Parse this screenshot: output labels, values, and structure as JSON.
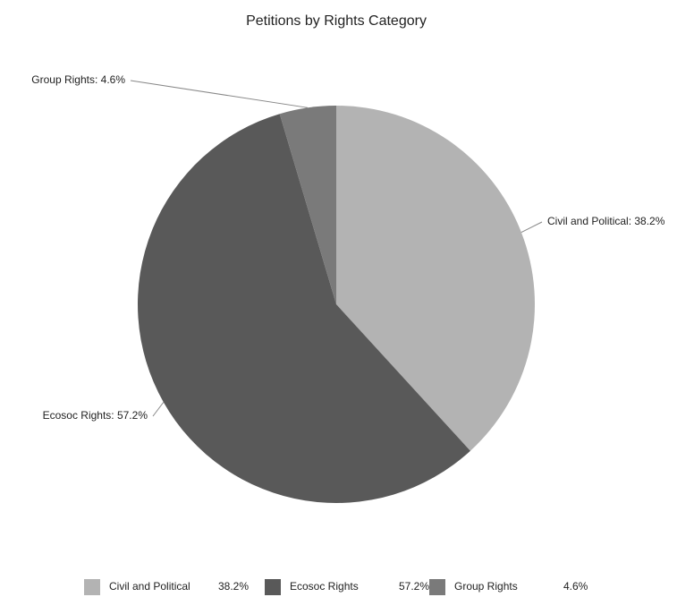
{
  "chart_data": {
    "type": "pie",
    "title": "Petitions by Rights Category",
    "categories": [
      "Civil and Political",
      "Ecosoc Rights",
      "Group Rights"
    ],
    "values": [
      38.2,
      57.2,
      4.6
    ],
    "value_labels": [
      "38.2%",
      "57.2%",
      "4.6%"
    ],
    "slice_labels": [
      "Civil and Political: 38.2%",
      "Ecosoc Rights: 57.2%",
      "Group Rights: 4.6%"
    ],
    "colors": [
      "#b3b3b3",
      "#595959",
      "#7a7a7a"
    ],
    "legend": "bottom"
  }
}
